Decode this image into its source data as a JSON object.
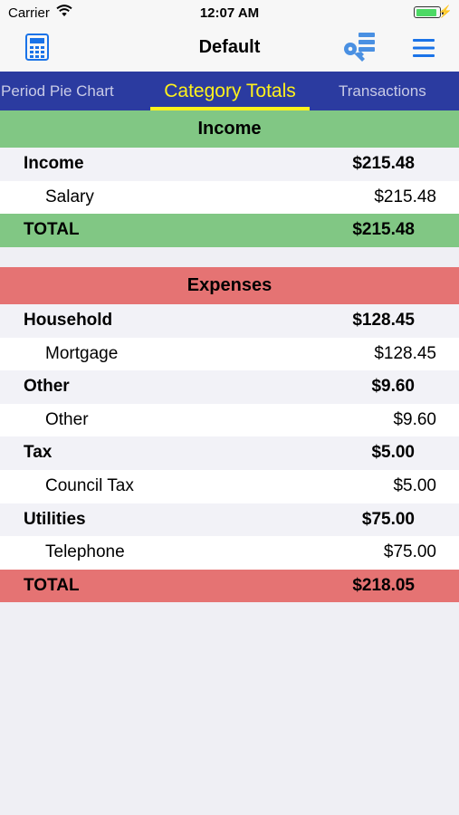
{
  "status_bar": {
    "carrier": "Carrier",
    "time": "12:07 AM"
  },
  "nav": {
    "title": "Default"
  },
  "tabs": [
    {
      "label": "Period Pie Chart",
      "active": false
    },
    {
      "label": "Category Totals",
      "active": true
    },
    {
      "label": "Transactions",
      "active": false
    }
  ],
  "income": {
    "header": "Income",
    "rows": [
      {
        "kind": "cat",
        "name": "Income",
        "amount": "$215.48"
      },
      {
        "kind": "item",
        "name": "Salary",
        "amount": "$215.48"
      }
    ],
    "total": {
      "label": "TOTAL",
      "amount": "$215.48"
    }
  },
  "expenses": {
    "header": "Expenses",
    "rows": [
      {
        "kind": "cat",
        "name": "Household",
        "amount": "$128.45"
      },
      {
        "kind": "item",
        "name": "Mortgage",
        "amount": "$128.45"
      },
      {
        "kind": "cat",
        "name": "Other",
        "amount": "$9.60"
      },
      {
        "kind": "item",
        "name": "Other",
        "amount": "$9.60"
      },
      {
        "kind": "cat",
        "name": "Tax",
        "amount": "$5.00"
      },
      {
        "kind": "item",
        "name": "Council Tax",
        "amount": "$5.00"
      },
      {
        "kind": "cat",
        "name": "Utilities",
        "amount": "$75.00"
      },
      {
        "kind": "item",
        "name": "Telephone",
        "amount": "$75.00"
      }
    ],
    "total": {
      "label": "TOTAL",
      "amount": "$218.05"
    }
  },
  "colors": {
    "tab_bar": "#2b3ba0",
    "tab_active": "#fff21c",
    "income": "#81c784",
    "expenses": "#e57373",
    "accent": "#1a73e8"
  },
  "icons": {
    "left": "calculator-icon",
    "right": [
      "key-list-icon",
      "hamburger-menu-icon"
    ]
  }
}
